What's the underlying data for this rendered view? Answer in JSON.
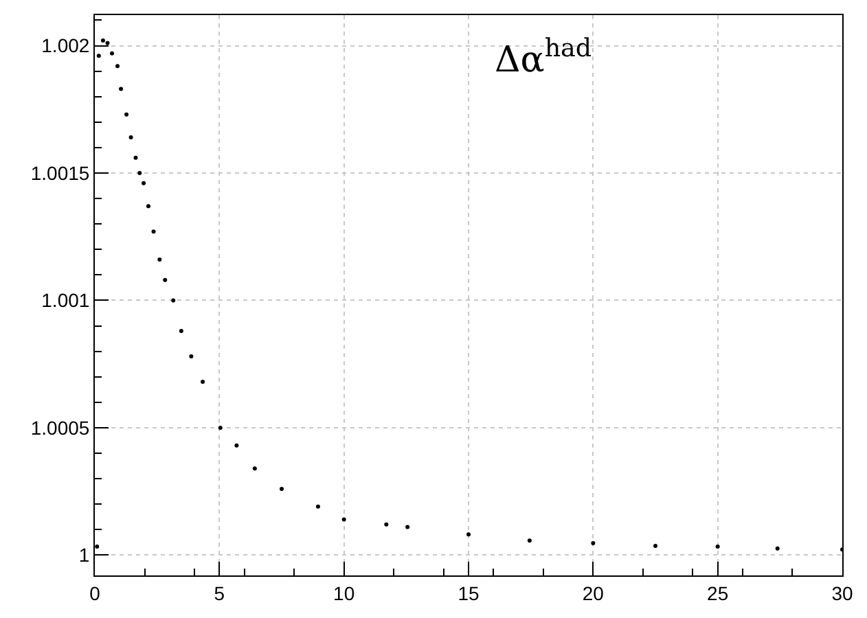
{
  "chart_data": {
    "type": "scatter",
    "annotations": [
      "Δα$^{had}$"
    ],
    "x": [
      0.09,
      0.16,
      0.33,
      0.51,
      0.69,
      0.91,
      1.05,
      1.27,
      1.45,
      1.64,
      1.8,
      1.96,
      2.15,
      2.36,
      2.6,
      2.82,
      3.15,
      3.47,
      3.87,
      4.33,
      5.04,
      5.69,
      6.42,
      7.5,
      8.96,
      10,
      11.7,
      12.55,
      15,
      17.45,
      20,
      22.5,
      25,
      27.4,
      30
    ],
    "values": [
      1.000033,
      1.00196,
      1.00202,
      1.00201,
      1.00197,
      1.00192,
      1.00183,
      1.00173,
      1.00164,
      1.00156,
      1.0015,
      1.00146,
      1.00137,
      1.00127,
      1.00116,
      1.00108,
      1.001,
      1.00088,
      1.00078,
      1.00068,
      1.0005,
      1.00043,
      1.00034,
      1.00026,
      1.00019,
      1.00014,
      1.00012,
      1.00011,
      1.000081,
      1.000057,
      1.000047,
      1.000036,
      1.000033,
      1.000026,
      1.000022
    ],
    "color": "#000000",
    "marker": "circle",
    "grid": true,
    "xlim": [
      0,
      30
    ],
    "xticks": [
      0,
      5,
      10,
      15,
      20,
      25,
      30
    ],
    "ylim": [
      0.99992,
      1.00212
    ],
    "yticks": [
      1,
      1.0005,
      1.001,
      1.0015,
      1.002
    ]
  }
}
